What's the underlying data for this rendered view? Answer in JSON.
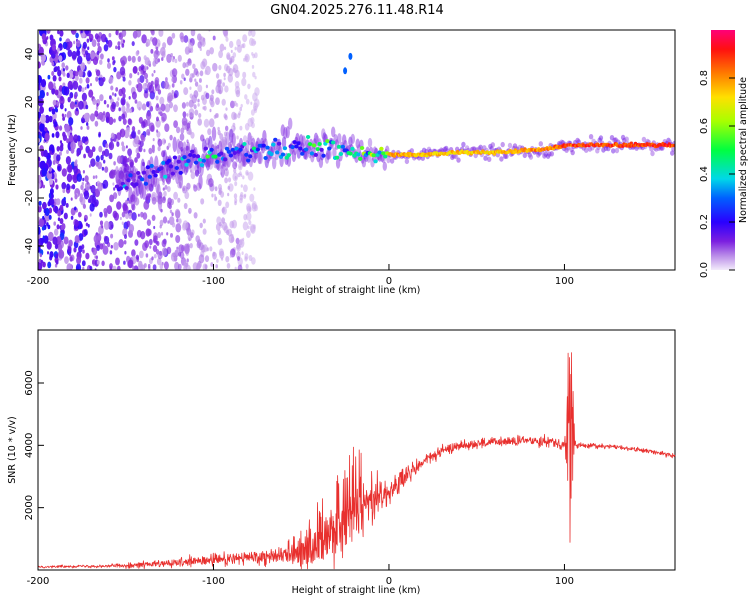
{
  "title": "GN04.2025.276.11.48.R14",
  "colors": {
    "snr_line": "#e8302e",
    "frame": "#000000"
  },
  "chart_data": [
    {
      "type": "heatmap",
      "title": "GN04.2025.276.11.48.R14",
      "xlabel": "Height of straight line (km)",
      "ylabel": "Frequency (Hz)",
      "xlim": [
        -200,
        163
      ],
      "ylim": [
        -50,
        50
      ],
      "xticks": [
        -200,
        -100,
        0,
        100
      ],
      "yticks": [
        -40,
        -20,
        0,
        20,
        40
      ],
      "colorbar": {
        "label": "Normalized spectral amplitude",
        "range": [
          0.0,
          1.0
        ],
        "ticks": [
          0.0,
          0.2,
          0.4,
          0.6,
          0.8
        ],
        "tick_labels": [
          "0.0",
          "0.2",
          "0.4",
          "0.6",
          "0.8"
        ],
        "colormap": [
          "#f0e6fa",
          "#8a2be2",
          "#0000ff",
          "#00e0e0",
          "#00ff00",
          "#ffff00",
          "#ff8000",
          "#ff0000",
          "#ff0080"
        ]
      },
      "ridge": {
        "description": "frequency of main spectral ridge vs height",
        "x": [
          -155,
          -140,
          -120,
          -100,
          -80,
          -60,
          -40,
          -25,
          -10,
          0,
          20,
          40,
          60,
          80,
          95,
          100,
          120,
          140,
          163
        ],
        "freq": [
          -15,
          -11,
          -6,
          -3,
          0,
          1,
          0,
          0,
          -1,
          -2,
          -2,
          -1,
          -1,
          0,
          1,
          2,
          2,
          2,
          2
        ],
        "amplitude": [
          0.3,
          0.35,
          0.4,
          0.45,
          0.5,
          0.55,
          0.5,
          0.7,
          0.85,
          0.85,
          0.8,
          0.8,
          0.8,
          0.85,
          0.9,
          0.95,
          0.95,
          0.95,
          0.95
        ]
      },
      "outliers": [
        {
          "x": -22,
          "freq": 39,
          "amplitude": 0.3
        },
        {
          "x": -25,
          "freq": 33,
          "amplitude": 0.3
        }
      ],
      "noise_region_x": [
        -200,
        -75
      ]
    },
    {
      "type": "line",
      "xlabel": "Height of straight line (km)",
      "ylabel": "SNR (10 * v/v)",
      "xlim": [
        -200,
        163
      ],
      "ylim": [
        0,
        7700
      ],
      "xticks": [
        -200,
        -100,
        0,
        100
      ],
      "yticks": [
        2000,
        4000,
        6000
      ],
      "series": [
        {
          "name": "SNR",
          "envelope_x": [
            -200,
            -180,
            -160,
            -140,
            -120,
            -100,
            -80,
            -60,
            -40,
            -30,
            -20,
            -10,
            0,
            10,
            20,
            30,
            40,
            60,
            80,
            90,
            95,
            100,
            102,
            104,
            106,
            110,
            130,
            150,
            163
          ],
          "mean": [
            100,
            120,
            130,
            170,
            220,
            320,
            400,
            500,
            900,
            1500,
            2200,
            2300,
            2500,
            3000,
            3500,
            3800,
            4000,
            4100,
            4150,
            4150,
            4100,
            4000,
            3900,
            3900,
            4000,
            4000,
            3950,
            3800,
            3650
          ],
          "noise_amplitude": [
            40,
            50,
            60,
            120,
            150,
            250,
            250,
            350,
            1200,
            1600,
            1500,
            800,
            500,
            400,
            250,
            180,
            180,
            180,
            180,
            200,
            200,
            150,
            3500,
            3500,
            150,
            100,
            80,
            80,
            80
          ]
        }
      ]
    }
  ]
}
